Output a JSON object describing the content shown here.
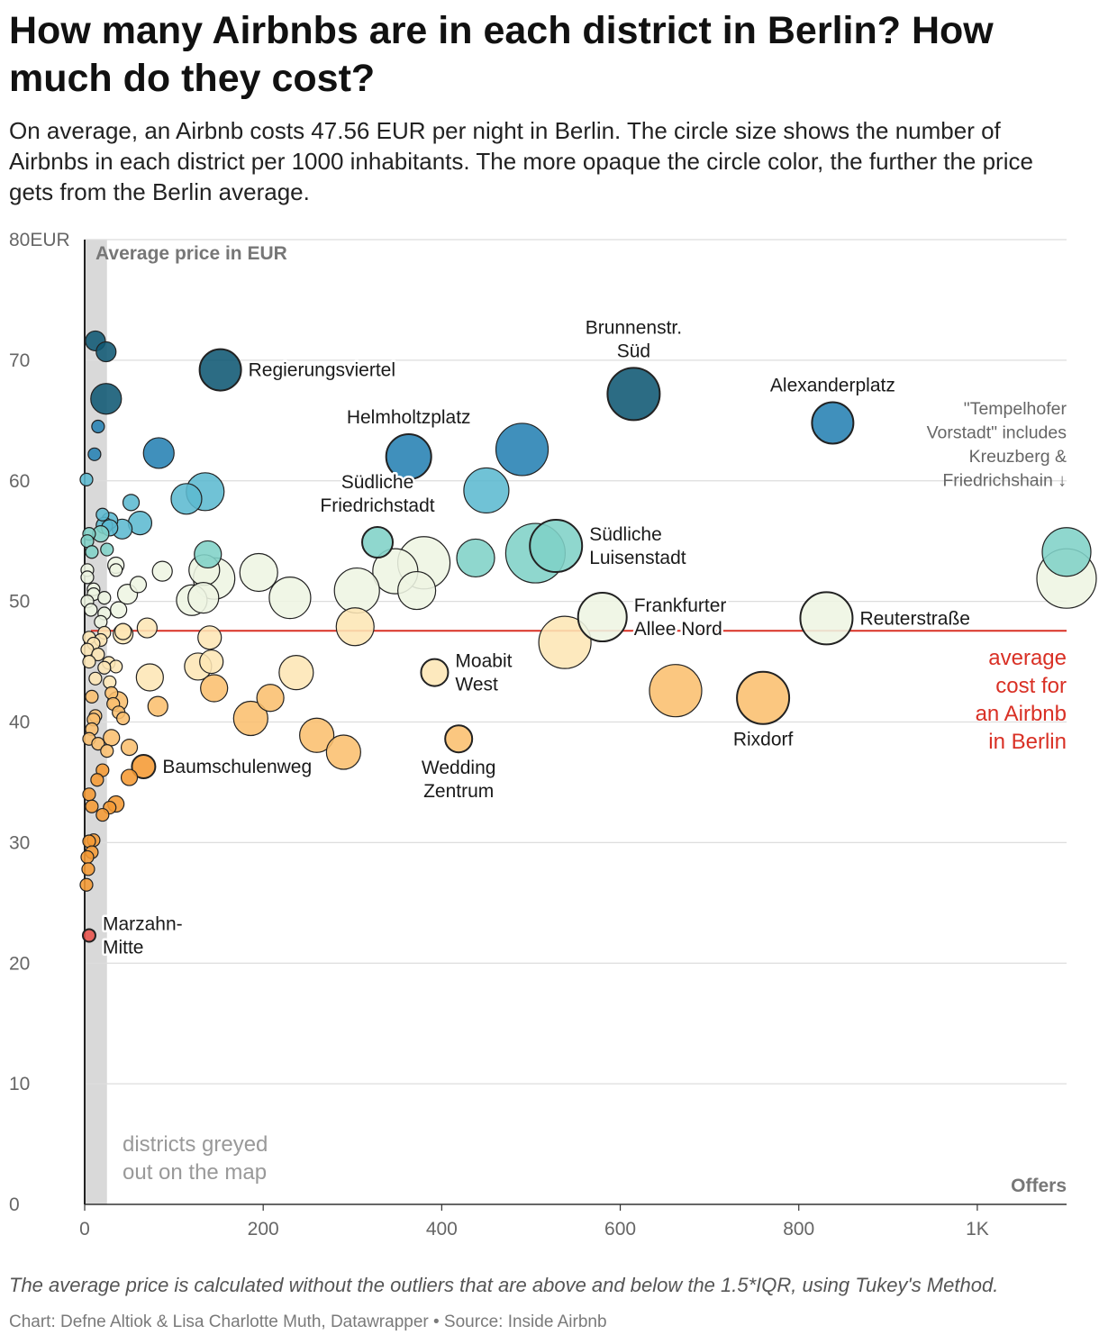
{
  "title": "How many Airbnbs are in each district in Berlin? How much do they cost?",
  "subtitle": "On average, an Airbnb costs 47.56 EUR per night in Berlin. The circle size shows the number of Airbnbs in each district per 1000 inhabitants. The more opaque the circle color, the further the price gets from the Berlin average.",
  "footnote": "The average price is calculated without the outliers that are above and below the 1.5*IQR, using Tukey's Method.",
  "credit": "Chart: Defne Altiok & Lisa Charlotte Muth, Datawrapper • Source: Inside Airbnb",
  "colors": {
    "high_far": "#0f5873",
    "high": "#2681b3",
    "mid_high": "#5cb9d0",
    "near_high": "#7fd1c7",
    "near": "#eef5e3",
    "near_low": "#fde6b5",
    "low": "#fbbf6e",
    "far_low": "#f59a33",
    "very_low": "#e8514a",
    "average_line": "#d93025",
    "grey_band": "#d9d9d9",
    "grid": "#dddddd"
  },
  "chart_data": {
    "type": "scatter",
    "title": "How many Airbnbs are in each district in Berlin? How much do they cost?",
    "xlabel": "Offers",
    "ylabel": "Average price in EUR",
    "xlim": [
      0,
      1100
    ],
    "ylim": [
      0,
      80
    ],
    "x_ticks": [
      {
        "value": 0,
        "label": "0"
      },
      {
        "value": 200,
        "label": "200"
      },
      {
        "value": 400,
        "label": "400"
      },
      {
        "value": 600,
        "label": "600"
      },
      {
        "value": 800,
        "label": "800"
      },
      {
        "value": 1000,
        "label": "1K"
      }
    ],
    "y_ticks": [
      {
        "value": 0,
        "label": "0"
      },
      {
        "value": 10,
        "label": "10"
      },
      {
        "value": 20,
        "label": "20"
      },
      {
        "value": 30,
        "label": "30"
      },
      {
        "value": 40,
        "label": "40"
      },
      {
        "value": 50,
        "label": "50"
      },
      {
        "value": 60,
        "label": "60"
      },
      {
        "value": 70,
        "label": "70"
      },
      {
        "value": 80,
        "label": "80EUR"
      }
    ],
    "average": {
      "value": 47.56,
      "label": [
        "average",
        "cost for",
        "an Airbnb",
        "in Berlin"
      ]
    },
    "grey_band": {
      "x_max": 25,
      "label": [
        "districts greyed",
        "out on the map"
      ]
    },
    "note": [
      "\"Tempelhofer",
      "Vorstadt\" includes",
      "Kreuzberg &",
      "Friedrichshain ↓"
    ],
    "points": [
      {
        "x": 152,
        "y": 69.2,
        "size": 9,
        "label": "Regierungsviertel"
      },
      {
        "x": 615,
        "y": 67.2,
        "size": 12,
        "label": "Brunnenstr. Süd"
      },
      {
        "x": 838,
        "y": 64.8,
        "size": 9,
        "label": "Alexanderplatz"
      },
      {
        "x": 363,
        "y": 62.0,
        "size": 10,
        "label": "Helmholtzplatz"
      },
      {
        "x": 328,
        "y": 54.9,
        "size": 6,
        "label": "Südliche Friedrichstadt"
      },
      {
        "x": 528,
        "y": 54.6,
        "size": 12,
        "label": "Südliche Luisenstadt"
      },
      {
        "x": 1100,
        "y": 54.1,
        "size": 11,
        "label": ""
      },
      {
        "x": 1100,
        "y": 51.9,
        "size": 14,
        "label": ""
      },
      {
        "x": 580,
        "y": 48.7,
        "size": 11,
        "label": "Frankfurter Allee Nord"
      },
      {
        "x": 831,
        "y": 48.6,
        "size": 12,
        "label": "Reuterstraße"
      },
      {
        "x": 392,
        "y": 44.1,
        "size": 5,
        "label": "Moabit West"
      },
      {
        "x": 419,
        "y": 38.6,
        "size": 5,
        "label": "Wedding Zentrum"
      },
      {
        "x": 760,
        "y": 42.0,
        "size": 12,
        "label": "Rixdorf"
      },
      {
        "x": 66,
        "y": 36.3,
        "size": 4,
        "label": "Baumschulenweg"
      },
      {
        "x": 5,
        "y": 22.3,
        "size": 1,
        "label": "Marzahn-Mitte"
      },
      {
        "x": 490,
        "y": 62.6,
        "size": 12,
        "label": ""
      },
      {
        "x": 450,
        "y": 59.2,
        "size": 10,
        "label": ""
      },
      {
        "x": 505,
        "y": 54.0,
        "size": 14,
        "label": ""
      },
      {
        "x": 438,
        "y": 53.6,
        "size": 8,
        "label": ""
      },
      {
        "x": 380,
        "y": 53.2,
        "size": 12,
        "label": ""
      },
      {
        "x": 348,
        "y": 52.5,
        "size": 10,
        "label": ""
      },
      {
        "x": 372,
        "y": 50.9,
        "size": 8,
        "label": ""
      },
      {
        "x": 305,
        "y": 50.9,
        "size": 10,
        "label": ""
      },
      {
        "x": 303,
        "y": 47.9,
        "size": 8,
        "label": ""
      },
      {
        "x": 230,
        "y": 50.3,
        "size": 9,
        "label": ""
      },
      {
        "x": 195,
        "y": 52.4,
        "size": 8,
        "label": ""
      },
      {
        "x": 538,
        "y": 46.6,
        "size": 12,
        "label": ""
      },
      {
        "x": 662,
        "y": 42.6,
        "size": 12,
        "label": ""
      },
      {
        "x": 237,
        "y": 44.1,
        "size": 7,
        "label": ""
      },
      {
        "x": 208,
        "y": 42.0,
        "size": 5,
        "label": ""
      },
      {
        "x": 186,
        "y": 40.3,
        "size": 7,
        "label": ""
      },
      {
        "x": 260,
        "y": 38.9,
        "size": 7,
        "label": ""
      },
      {
        "x": 290,
        "y": 37.5,
        "size": 7,
        "label": ""
      },
      {
        "x": 135,
        "y": 59.1,
        "size": 8,
        "label": ""
      },
      {
        "x": 114,
        "y": 58.5,
        "size": 6,
        "label": ""
      },
      {
        "x": 83,
        "y": 62.3,
        "size": 6,
        "label": ""
      },
      {
        "x": 138,
        "y": 53.9,
        "size": 5,
        "label": ""
      },
      {
        "x": 145,
        "y": 51.9,
        "size": 9,
        "label": ""
      },
      {
        "x": 134,
        "y": 52.6,
        "size": 6,
        "label": ""
      },
      {
        "x": 120,
        "y": 50.1,
        "size": 6,
        "label": ""
      },
      {
        "x": 133,
        "y": 50.3,
        "size": 6,
        "label": ""
      },
      {
        "x": 140,
        "y": 47.0,
        "size": 4,
        "label": ""
      },
      {
        "x": 127,
        "y": 44.6,
        "size": 5,
        "label": ""
      },
      {
        "x": 142,
        "y": 45.0,
        "size": 4,
        "label": ""
      },
      {
        "x": 145,
        "y": 42.8,
        "size": 5,
        "label": ""
      },
      {
        "x": 73,
        "y": 43.7,
        "size": 5,
        "label": ""
      },
      {
        "x": 87,
        "y": 52.5,
        "size": 3,
        "label": ""
      },
      {
        "x": 70,
        "y": 47.8,
        "size": 3,
        "label": ""
      },
      {
        "x": 82,
        "y": 41.3,
        "size": 3,
        "label": ""
      },
      {
        "x": 62,
        "y": 56.5,
        "size": 4,
        "label": ""
      },
      {
        "x": 24,
        "y": 66.8,
        "size": 6,
        "label": ""
      },
      {
        "x": 12,
        "y": 71.6,
        "size": 3,
        "label": ""
      },
      {
        "x": 24,
        "y": 70.7,
        "size": 3,
        "label": ""
      },
      {
        "x": 15,
        "y": 64.5,
        "size": 1,
        "label": ""
      },
      {
        "x": 11,
        "y": 62.2,
        "size": 1,
        "label": ""
      },
      {
        "x": 2,
        "y": 60.1,
        "size": 1,
        "label": ""
      },
      {
        "x": 52,
        "y": 58.2,
        "size": 2,
        "label": ""
      },
      {
        "x": 42,
        "y": 56.0,
        "size": 3,
        "label": ""
      },
      {
        "x": 20,
        "y": 57.2,
        "size": 1,
        "label": ""
      },
      {
        "x": 28,
        "y": 56.7,
        "size": 2,
        "label": ""
      },
      {
        "x": 22,
        "y": 56.3,
        "size": 2,
        "label": ""
      },
      {
        "x": 28,
        "y": 56.1,
        "size": 2,
        "label": ""
      },
      {
        "x": 18,
        "y": 55.6,
        "size": 2,
        "label": ""
      },
      {
        "x": 5,
        "y": 55.6,
        "size": 1,
        "label": ""
      },
      {
        "x": 3,
        "y": 55.0,
        "size": 1,
        "label": ""
      },
      {
        "x": 25,
        "y": 54.3,
        "size": 1,
        "label": ""
      },
      {
        "x": 8,
        "y": 54.1,
        "size": 1,
        "label": ""
      },
      {
        "x": 35,
        "y": 53.0,
        "size": 2,
        "label": ""
      },
      {
        "x": 35,
        "y": 52.6,
        "size": 1,
        "label": ""
      },
      {
        "x": 3,
        "y": 52.6,
        "size": 1,
        "label": ""
      },
      {
        "x": 3,
        "y": 52.0,
        "size": 1,
        "label": ""
      },
      {
        "x": 60,
        "y": 51.4,
        "size": 2,
        "label": ""
      },
      {
        "x": 10,
        "y": 51.0,
        "size": 1,
        "label": ""
      },
      {
        "x": 10,
        "y": 50.6,
        "size": 1,
        "label": ""
      },
      {
        "x": 48,
        "y": 50.6,
        "size": 3,
        "label": ""
      },
      {
        "x": 22,
        "y": 50.3,
        "size": 1,
        "label": ""
      },
      {
        "x": 3,
        "y": 50.0,
        "size": 1,
        "label": ""
      },
      {
        "x": 7,
        "y": 49.3,
        "size": 1,
        "label": ""
      },
      {
        "x": 38,
        "y": 49.3,
        "size": 2,
        "label": ""
      },
      {
        "x": 22,
        "y": 49.0,
        "size": 1,
        "label": ""
      },
      {
        "x": 18,
        "y": 48.3,
        "size": 1,
        "label": ""
      },
      {
        "x": 43,
        "y": 47.3,
        "size": 3,
        "label": ""
      },
      {
        "x": 43,
        "y": 47.5,
        "size": 2,
        "label": ""
      },
      {
        "x": 22,
        "y": 47.4,
        "size": 1,
        "label": ""
      },
      {
        "x": 5,
        "y": 47.0,
        "size": 1,
        "label": ""
      },
      {
        "x": 18,
        "y": 46.8,
        "size": 1,
        "label": ""
      },
      {
        "x": 10,
        "y": 46.5,
        "size": 1,
        "label": ""
      },
      {
        "x": 3,
        "y": 46.0,
        "size": 1,
        "label": ""
      },
      {
        "x": 15,
        "y": 45.6,
        "size": 1,
        "label": ""
      },
      {
        "x": 27,
        "y": 44.9,
        "size": 1,
        "label": ""
      },
      {
        "x": 5,
        "y": 45.0,
        "size": 1,
        "label": ""
      },
      {
        "x": 35,
        "y": 44.6,
        "size": 1,
        "label": ""
      },
      {
        "x": 22,
        "y": 44.5,
        "size": 1,
        "label": ""
      },
      {
        "x": 12,
        "y": 43.6,
        "size": 1,
        "label": ""
      },
      {
        "x": 28,
        "y": 43.3,
        "size": 1,
        "label": ""
      },
      {
        "x": 30,
        "y": 42.4,
        "size": 1,
        "label": ""
      },
      {
        "x": 8,
        "y": 42.1,
        "size": 1,
        "label": ""
      },
      {
        "x": 37,
        "y": 41.7,
        "size": 3,
        "label": ""
      },
      {
        "x": 32,
        "y": 41.5,
        "size": 1,
        "label": ""
      },
      {
        "x": 38,
        "y": 40.8,
        "size": 1,
        "label": ""
      },
      {
        "x": 12,
        "y": 40.5,
        "size": 1,
        "label": ""
      },
      {
        "x": 43,
        "y": 40.3,
        "size": 1,
        "label": ""
      },
      {
        "x": 10,
        "y": 40.2,
        "size": 1,
        "label": ""
      },
      {
        "x": 8,
        "y": 39.4,
        "size": 1,
        "label": ""
      },
      {
        "x": 30,
        "y": 38.7,
        "size": 2,
        "label": ""
      },
      {
        "x": 5,
        "y": 38.6,
        "size": 1,
        "label": ""
      },
      {
        "x": 15,
        "y": 38.2,
        "size": 1,
        "label": ""
      },
      {
        "x": 50,
        "y": 37.9,
        "size": 2,
        "label": ""
      },
      {
        "x": 25,
        "y": 37.6,
        "size": 1,
        "label": ""
      },
      {
        "x": 20,
        "y": 36.0,
        "size": 1,
        "label": ""
      },
      {
        "x": 50,
        "y": 35.4,
        "size": 2,
        "label": ""
      },
      {
        "x": 14,
        "y": 35.2,
        "size": 1,
        "label": ""
      },
      {
        "x": 5,
        "y": 34.0,
        "size": 1,
        "label": ""
      },
      {
        "x": 35,
        "y": 33.2,
        "size": 2,
        "label": ""
      },
      {
        "x": 8,
        "y": 33.0,
        "size": 1,
        "label": ""
      },
      {
        "x": 28,
        "y": 32.9,
        "size": 1,
        "label": ""
      },
      {
        "x": 20,
        "y": 32.3,
        "size": 1,
        "label": ""
      },
      {
        "x": 10,
        "y": 30.2,
        "size": 1,
        "label": ""
      },
      {
        "x": 5,
        "y": 30.1,
        "size": 1,
        "label": ""
      },
      {
        "x": 8,
        "y": 29.2,
        "size": 1,
        "label": ""
      },
      {
        "x": 3,
        "y": 28.8,
        "size": 1,
        "label": ""
      },
      {
        "x": 4,
        "y": 27.8,
        "size": 1,
        "label": ""
      },
      {
        "x": 2,
        "y": 26.5,
        "size": 1,
        "label": ""
      }
    ]
  }
}
